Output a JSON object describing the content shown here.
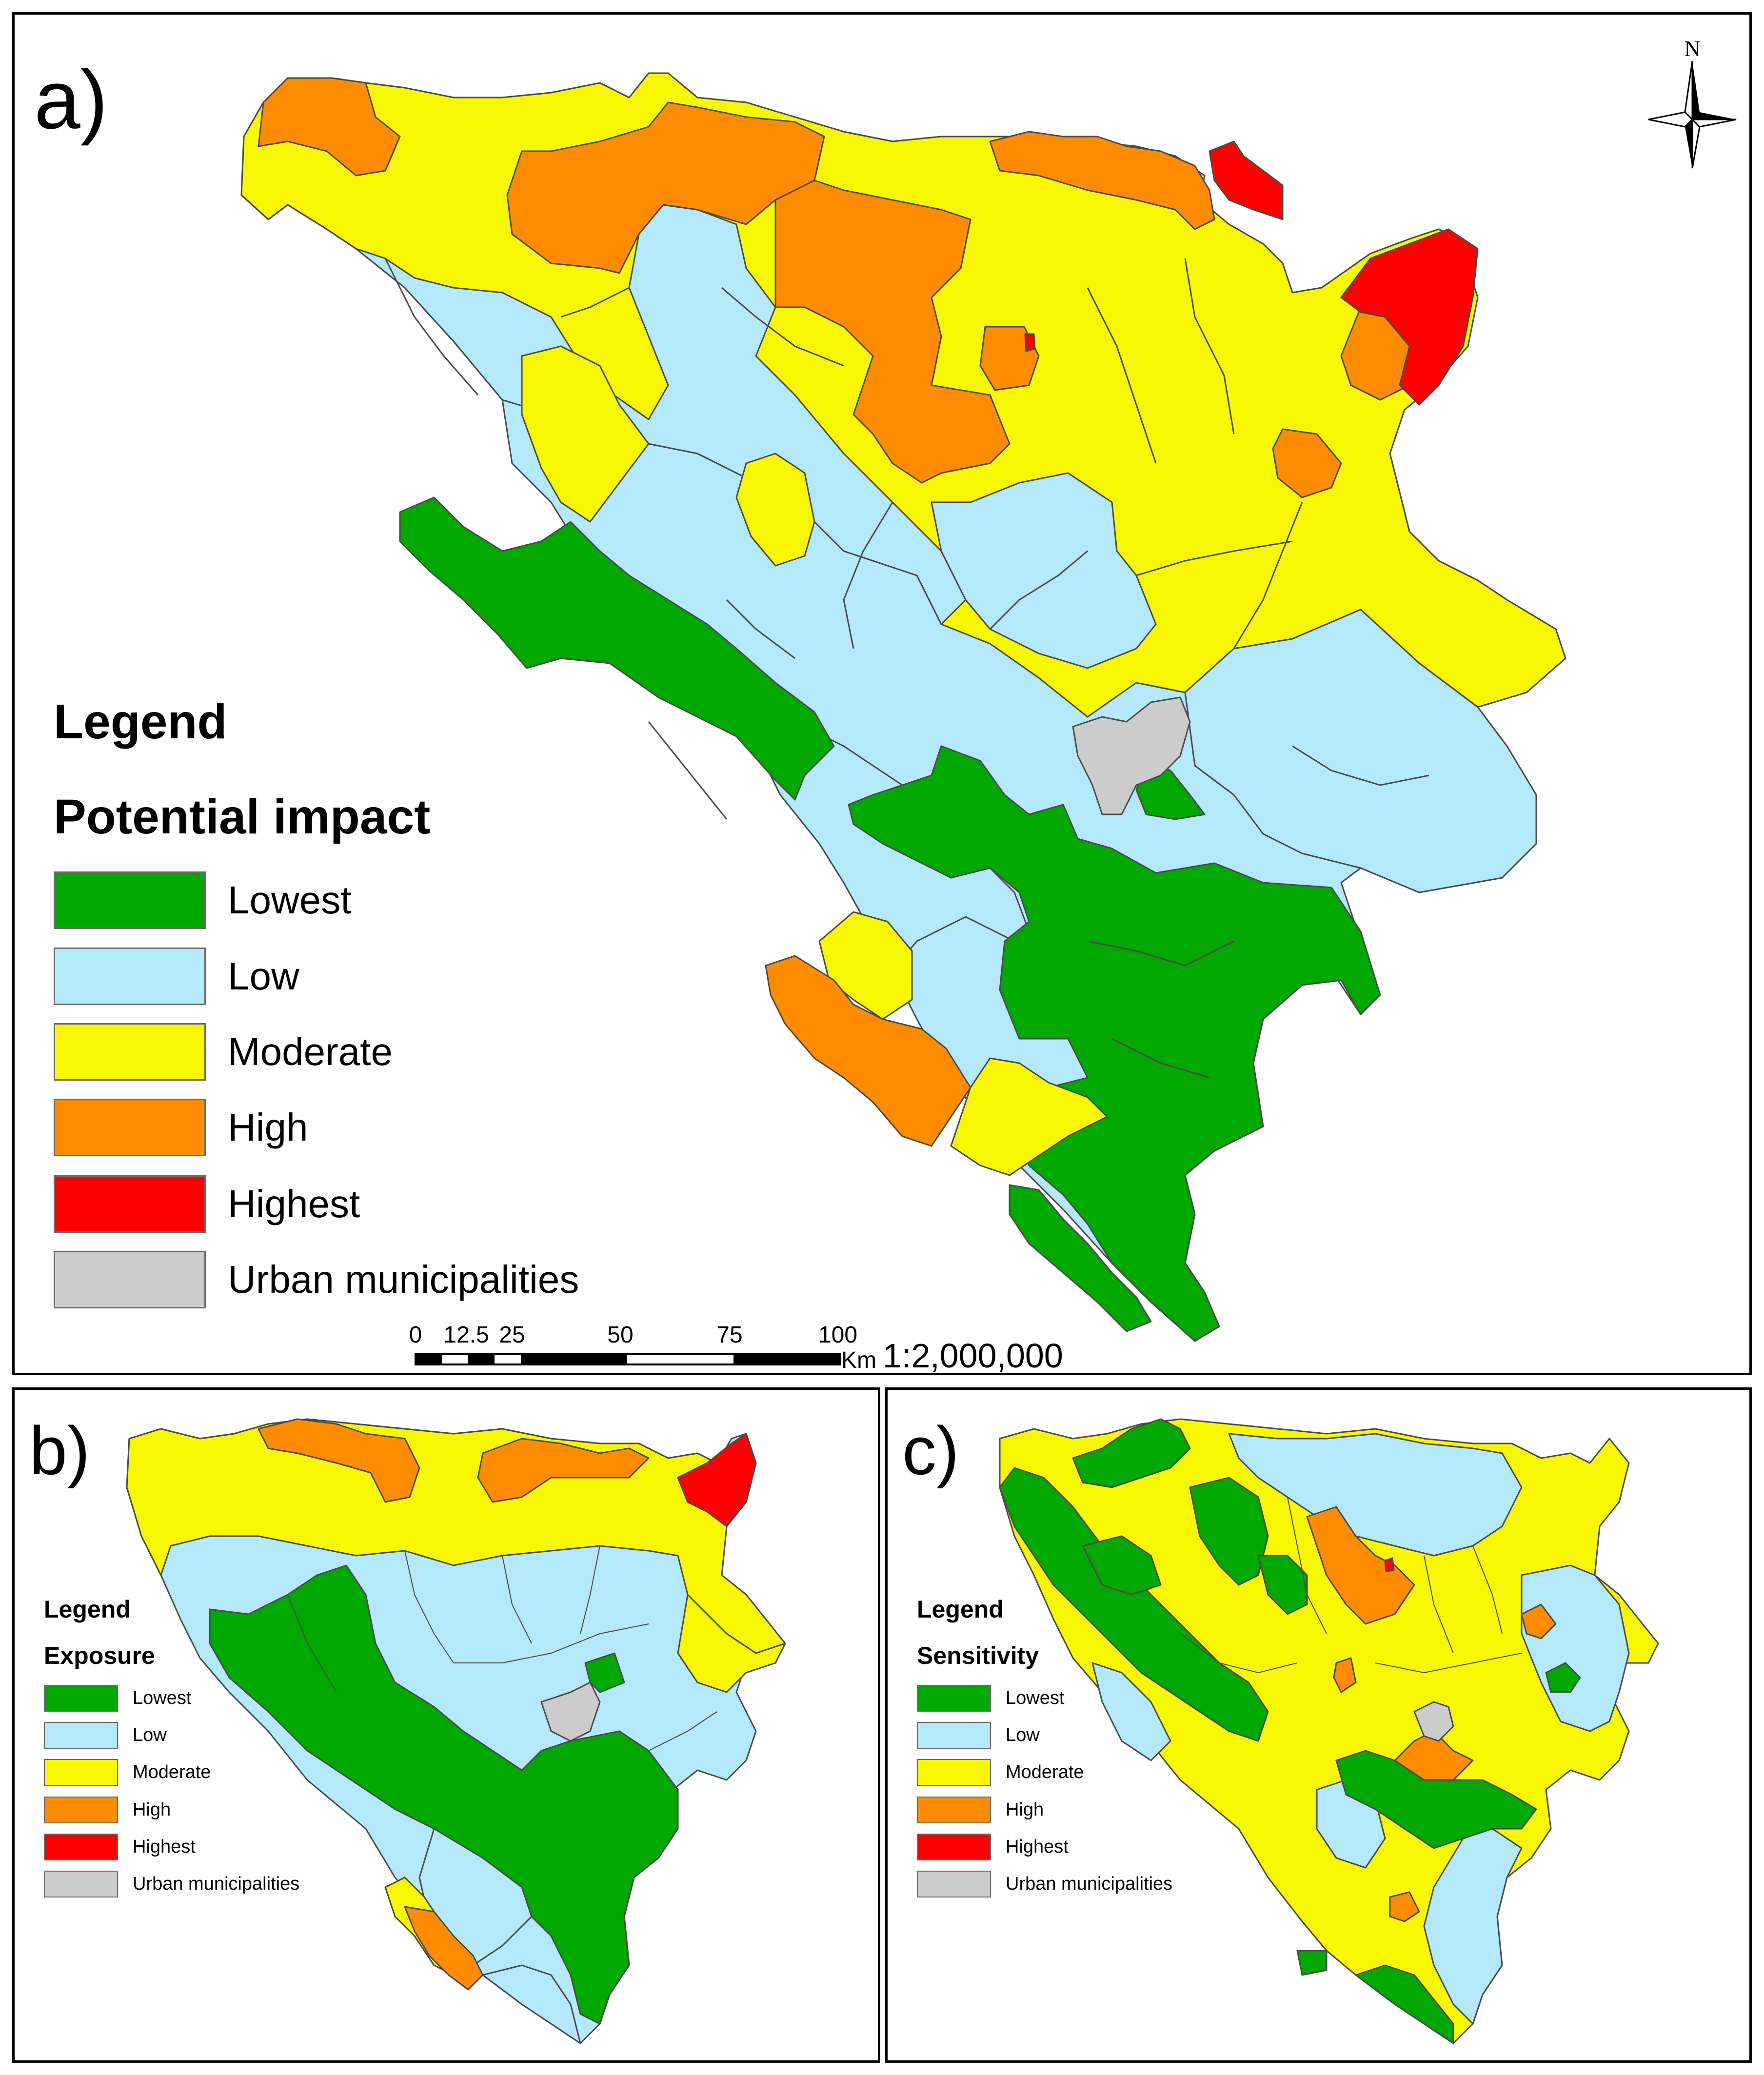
{
  "panels": {
    "a": {
      "label": "a)"
    },
    "b": {
      "label": "b)"
    },
    "c": {
      "label": "c)"
    }
  },
  "legend_a": {
    "title": "Legend",
    "subtitle": "Potential impact",
    "items": [
      {
        "label": "Lowest",
        "color": "#00a800"
      },
      {
        "label": "Low",
        "color": "#b3e9fa"
      },
      {
        "label": "Moderate",
        "color": "#f7f700"
      },
      {
        "label": "High",
        "color": "#ff8c00"
      },
      {
        "label": "Highest",
        "color": "#ff0000"
      },
      {
        "label": "Urban municipalities",
        "color": "#cccccc"
      }
    ]
  },
  "legend_b": {
    "title": "Legend",
    "subtitle": "Exposure",
    "items": [
      {
        "label": "Lowest",
        "color": "#00a800"
      },
      {
        "label": "Low",
        "color": "#b3e9fa"
      },
      {
        "label": "Moderate",
        "color": "#f7f700"
      },
      {
        "label": "High",
        "color": "#ff8c00"
      },
      {
        "label": "Highest",
        "color": "#ff0000"
      },
      {
        "label": "Urban municipalities",
        "color": "#cccccc"
      }
    ]
  },
  "legend_c": {
    "title": "Legend",
    "subtitle": "Sensitivity",
    "items": [
      {
        "label": "Lowest",
        "color": "#00a800"
      },
      {
        "label": "Low",
        "color": "#b3e9fa"
      },
      {
        "label": "Moderate",
        "color": "#f7f700"
      },
      {
        "label": "High",
        "color": "#ff8c00"
      },
      {
        "label": "Highest",
        "color": "#ff0000"
      },
      {
        "label": "Urban municipalities",
        "color": "#cccccc"
      }
    ]
  },
  "north_arrow": {
    "label": "N"
  },
  "scale_bar": {
    "ticks": [
      "0",
      "12.5",
      "25",
      "50",
      "75",
      "100"
    ],
    "unit": "Km",
    "ratio": "1:2,000,000"
  }
}
